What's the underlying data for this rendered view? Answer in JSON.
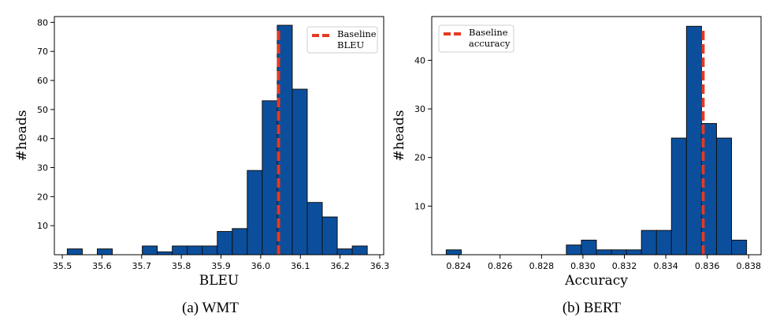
{
  "chart_data": [
    {
      "type": "bar",
      "panel": "WMT",
      "caption": "(a)  WMT",
      "xlabel": "BLEU",
      "ylabel": "#heads",
      "xlim": [
        35.48,
        36.31
      ],
      "ylim": [
        0,
        82
      ],
      "xticks": [
        "35.5",
        "35.6",
        "35.7",
        "35.8",
        "35.9",
        "36.0",
        "36.1",
        "36.2",
        "36.3"
      ],
      "xtick_values": [
        35.5,
        35.6,
        35.7,
        35.8,
        35.9,
        36.0,
        36.1,
        36.2,
        36.3
      ],
      "yticks": [
        "10",
        "20",
        "30",
        "40",
        "50",
        "60",
        "70",
        "80"
      ],
      "ytick_values": [
        10,
        20,
        30,
        40,
        50,
        60,
        70,
        80
      ],
      "bin_start": 35.5126,
      "bin_width": 0.0378,
      "values": [
        2,
        0,
        2,
        0,
        0,
        3,
        1,
        3,
        3,
        3,
        8,
        9,
        29,
        53,
        79,
        57,
        18,
        13,
        2,
        3
      ],
      "bar_color": "#0b4f9c",
      "baseline": {
        "value": 36.045,
        "label": "Baseline\nBLEU",
        "label_lines": [
          "Baseline",
          "BLEU"
        ],
        "color": "#e53a22"
      },
      "legend_position": "upper right",
      "grid": false
    },
    {
      "type": "bar",
      "panel": "BERT",
      "caption": "(b)  BERT",
      "xlabel": "Accuracy",
      "ylabel": "#heads",
      "xlim": [
        0.8227,
        0.8386
      ],
      "ylim": [
        0,
        49
      ],
      "xticks": [
        "0.824",
        "0.826",
        "0.828",
        "0.830",
        "0.832",
        "0.834",
        "0.836",
        "0.838"
      ],
      "xtick_values": [
        0.824,
        0.826,
        0.828,
        0.83,
        0.832,
        0.834,
        0.836,
        0.838
      ],
      "yticks": [
        "10",
        "20",
        "30",
        "40"
      ],
      "ytick_values": [
        10,
        20,
        30,
        40
      ],
      "bin_start": 0.8234,
      "bin_width": 0.000725,
      "values": [
        1,
        0,
        0,
        0,
        0,
        0,
        0,
        0,
        2,
        3,
        1,
        1,
        1,
        5,
        5,
        24,
        47,
        27,
        24,
        3
      ],
      "bar_color": "#0b4f9c",
      "baseline": {
        "value": 0.8358,
        "label": "Baseline\naccuracy",
        "label_lines": [
          "Baseline",
          "accuracy"
        ],
        "color": "#e53a22"
      },
      "legend_position": "upper left",
      "grid": false
    }
  ]
}
